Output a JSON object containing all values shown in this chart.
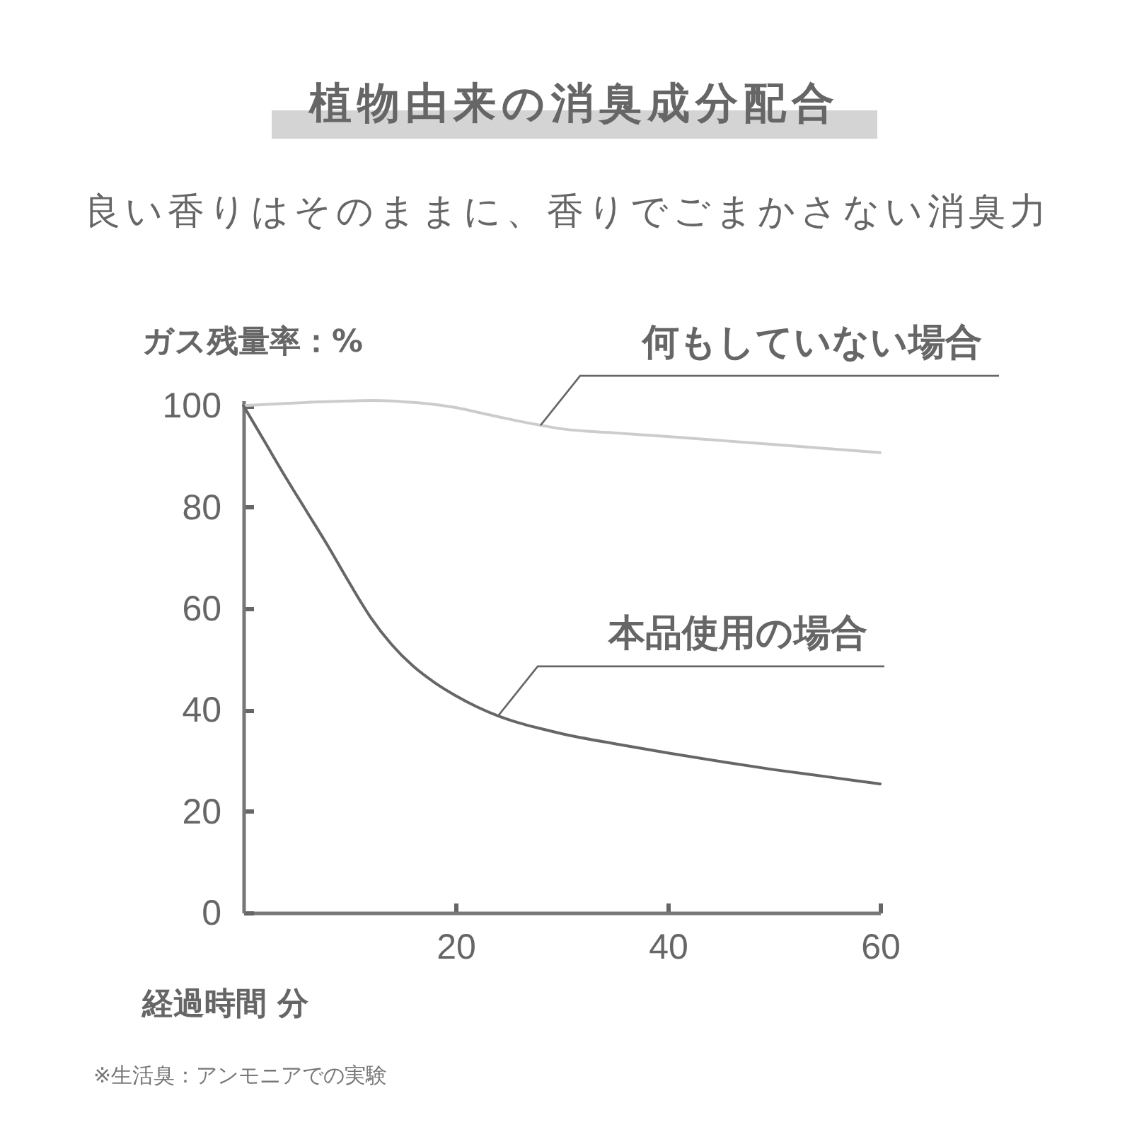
{
  "chart_data": {
    "type": "line",
    "title": "植物由来の消臭成分配合",
    "subtitle": "良い香りはそのままに、香りでごまかさない消臭力",
    "xlabel": "経過時間 分",
    "ylabel": "ガス残量率：%",
    "annotations": [
      "※生活臭：アンモニアでの実験"
    ],
    "x": [
      0,
      2,
      4,
      6,
      8,
      10,
      12,
      14,
      16,
      18,
      20,
      22,
      24,
      26,
      28,
      30,
      35,
      40,
      45,
      50,
      55,
      60
    ],
    "series": [
      {
        "name": "何もしていない場合",
        "color": "#cccccc",
        "values": [
          100,
          100.2,
          100.4,
          100.6,
          100.8,
          100.9,
          101,
          100.9,
          100.6,
          100.2,
          99.6,
          98.7,
          97.8,
          96.9,
          96.1,
          95.4,
          94.6,
          93.9,
          93.1,
          92.3,
          91.5,
          90.7
        ]
      },
      {
        "name": "本品使用の場合",
        "color": "#666666",
        "values": [
          100,
          92.9,
          85.8,
          79,
          72.2,
          65,
          58.2,
          52.8,
          48.6,
          45.4,
          42.8,
          40.6,
          38.8,
          37.4,
          36.3,
          35.3,
          33.3,
          31.5,
          29.8,
          28.2,
          26.8,
          25.4
        ]
      }
    ],
    "xlim": [
      0,
      60
    ],
    "xticks": [
      20,
      40,
      60
    ],
    "ylim": [
      0,
      101
    ],
    "yticks": [
      0,
      20,
      40,
      60,
      80,
      100
    ]
  }
}
